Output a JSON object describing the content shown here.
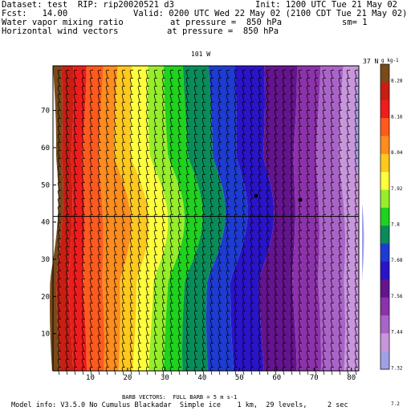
{
  "header": {
    "dataset": "Dataset: test  RIP: rip20020521 d3",
    "init": "Init: 1200 UTC Tue 21 May 02",
    "fcst": "Fcst:   14.00",
    "valid": "Valid: 0200 UTC Wed 22 May 02 (2100 CDT Tue 21 May 02)",
    "field1_name": "Water vapor mixing ratio",
    "field1_level": "at pressure =  850 hPa",
    "field1_extra": "sm= 1",
    "field2_name": "Horizontal wind vectors",
    "field2_level": "at pressure =  850 hPa"
  },
  "map": {
    "top_left_label": "101 W",
    "top_right_label": "37 N",
    "colorbar_unit": "g kg-1",
    "x_ticks": [
      "10",
      "20",
      "30",
      "40",
      "50",
      "60",
      "70",
      "80"
    ],
    "y_ticks": [
      "10",
      "20",
      "30",
      "40",
      "50",
      "60",
      "70"
    ],
    "colorbar_labels": [
      "8.28",
      "8.16",
      "8.04",
      "7.92",
      "7.8",
      "7.68",
      "7.56",
      "7.44",
      "7.32",
      "7.2"
    ],
    "colorbar_colors": [
      "#7a4a1a",
      "#c81e14",
      "#ee1c1c",
      "#ff5a1e",
      "#ff8c1e",
      "#ffc81e",
      "#ffff3c",
      "#96ee2a",
      "#1ed21e",
      "#0a8c5a",
      "#1e3cd2",
      "#2a14c8",
      "#64148c",
      "#8c32aa",
      "#aa64c8",
      "#c896dc",
      "#a0a0e6"
    ],
    "wind_barb_color": "#000000",
    "horizontal_line_y": 41.5
  },
  "footer": {
    "barb_vectors": "BARB VECTORS:  FULL BARB = 5 m s-1",
    "model_info": "Model info: V3.5.0 No Cumulus Blackadar  Simple ice    1 km,  29 levels,     2 sec"
  }
}
